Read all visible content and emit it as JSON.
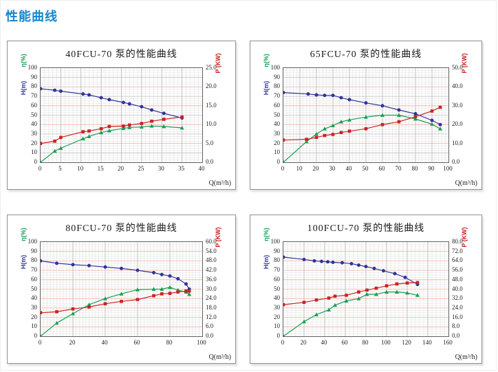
{
  "page": {
    "title": "性能曲线",
    "title_color": "#1287d0"
  },
  "chart_data": [
    {
      "type": "line",
      "title": "40FCU-70 泵的性能曲线",
      "xlabel": "Q(m³/h)",
      "x_range": [
        0,
        40
      ],
      "x_step": 5,
      "x_minor": 1,
      "left_axis": {
        "eta_label": "η(%)",
        "h_label": "H(m)",
        "range": [
          0,
          100
        ],
        "step": 10
      },
      "right_axis": {
        "label": "P (KW)",
        "range": [
          0,
          25
        ],
        "step": 5
      },
      "grid": true,
      "legend": "none",
      "series": [
        {
          "name": "H(m)",
          "axis": "left",
          "marker": "circle",
          "color": "#31319b",
          "points": [
            [
              0,
              78
            ],
            [
              3.5,
              76.5
            ],
            [
              5,
              75.5
            ],
            [
              10.5,
              72.5
            ],
            [
              12,
              71.5
            ],
            [
              15,
              68.5
            ],
            [
              17,
              66.5
            ],
            [
              20.5,
              63.5
            ],
            [
              22,
              62
            ],
            [
              25,
              59
            ],
            [
              27.5,
              55.5
            ],
            [
              30.5,
              52
            ],
            [
              35,
              47
            ]
          ]
        },
        {
          "name": "η(%)",
          "axis": "left",
          "marker": "triangle",
          "color": "#1a9e54",
          "points": [
            [
              0,
              0
            ],
            [
              3.5,
              12
            ],
            [
              5,
              15
            ],
            [
              10.5,
              25
            ],
            [
              12,
              27.5
            ],
            [
              15,
              31.5
            ],
            [
              17,
              33.5
            ],
            [
              20.5,
              36
            ],
            [
              22,
              37
            ],
            [
              25,
              37.5
            ],
            [
              27.5,
              38.5
            ],
            [
              30.5,
              38
            ],
            [
              35,
              36.5
            ]
          ]
        },
        {
          "name": "P(KW)",
          "axis": "right",
          "marker": "square",
          "color": "#cc2222",
          "points": [
            [
              0,
              5.0
            ],
            [
              3.5,
              5.6
            ],
            [
              5,
              6.6
            ],
            [
              10.5,
              8.1
            ],
            [
              12,
              8.3
            ],
            [
              15,
              8.9
            ],
            [
              17,
              9.5
            ],
            [
              20.5,
              9.6
            ],
            [
              22,
              9.9
            ],
            [
              25,
              10.3
            ],
            [
              27.5,
              10.9
            ],
            [
              30.5,
              11.4
            ],
            [
              35,
              12.0
            ]
          ]
        }
      ]
    },
    {
      "type": "line",
      "title": "65FCU-70 泵的性能曲线",
      "xlabel": "Q(m³/h)",
      "x_range": [
        0,
        100
      ],
      "x_step": 10,
      "x_minor": 2,
      "left_axis": {
        "eta_label": "η(%)",
        "h_label": "H(m)",
        "range": [
          0,
          100
        ],
        "step": 10
      },
      "right_axis": {
        "label": "P (KW)",
        "range": [
          0,
          50
        ],
        "step": 10
      },
      "grid": true,
      "legend": "none",
      "series": [
        {
          "name": "H(m)",
          "axis": "left",
          "marker": "circle",
          "color": "#31319b",
          "points": [
            [
              0,
              74
            ],
            [
              15,
              72.5
            ],
            [
              20,
              71.5
            ],
            [
              25,
              71
            ],
            [
              30,
              71
            ],
            [
              35,
              68.5
            ],
            [
              40,
              66.5
            ],
            [
              50,
              63
            ],
            [
              60,
              60
            ],
            [
              70,
              55.5
            ],
            [
              80,
              51.5
            ],
            [
              90,
              44.5
            ],
            [
              95,
              40
            ]
          ]
        },
        {
          "name": "η(%)",
          "axis": "left",
          "marker": "triangle",
          "color": "#1a9e54",
          "points": [
            [
              0,
              0
            ],
            [
              14,
              22
            ],
            [
              20,
              30
            ],
            [
              25,
              35.5
            ],
            [
              30,
              39
            ],
            [
              35,
              43
            ],
            [
              40,
              45
            ],
            [
              50,
              48
            ],
            [
              60,
              50
            ],
            [
              70,
              50
            ],
            [
              80,
              46
            ],
            [
              90,
              40.5
            ],
            [
              95,
              35.5
            ]
          ]
        },
        {
          "name": "P(KW)",
          "axis": "right",
          "marker": "square",
          "color": "#cc2222",
          "points": [
            [
              0,
              11.8
            ],
            [
              14,
              12.2
            ],
            [
              20,
              13.2
            ],
            [
              25,
              14.2
            ],
            [
              30,
              14.8
            ],
            [
              35,
              15.8
            ],
            [
              40,
              16.5
            ],
            [
              50,
              17.8
            ],
            [
              60,
              20
            ],
            [
              70,
              21.5
            ],
            [
              80,
              24.2
            ],
            [
              90,
              27.2
            ],
            [
              95,
              29.2
            ]
          ]
        }
      ]
    },
    {
      "type": "line",
      "title": "80FCU-70 泵的性能曲线",
      "xlabel": "Q(m³/h)",
      "x_range": [
        0,
        100
      ],
      "x_step": 20,
      "x_minor": 2,
      "left_axis": {
        "eta_label": "η(%)",
        "h_label": "H(m)",
        "range": [
          0,
          100
        ],
        "step": 10
      },
      "right_axis": {
        "label": "P (KW)",
        "range": [
          0,
          60
        ],
        "step": 6
      },
      "grid": true,
      "legend": "none",
      "series": [
        {
          "name": "H(m)",
          "axis": "left",
          "marker": "circle",
          "color": "#31319b",
          "points": [
            [
              0,
              80
            ],
            [
              10,
              77.5
            ],
            [
              20,
              76
            ],
            [
              30,
              75
            ],
            [
              40,
              73.5
            ],
            [
              50,
              72
            ],
            [
              60,
              70
            ],
            [
              70,
              67.5
            ],
            [
              75,
              65.5
            ],
            [
              80,
              64
            ],
            [
              85,
              61
            ],
            [
              90,
              55.5
            ],
            [
              92,
              50
            ]
          ]
        },
        {
          "name": "η(%)",
          "axis": "left",
          "marker": "triangle",
          "color": "#1a9e54",
          "points": [
            [
              0,
              0
            ],
            [
              10,
              14
            ],
            [
              20,
              24
            ],
            [
              30,
              33.5
            ],
            [
              40,
              40
            ],
            [
              50,
              45
            ],
            [
              60,
              49.5
            ],
            [
              70,
              50
            ],
            [
              75,
              50
            ],
            [
              80,
              52
            ],
            [
              85,
              49
            ],
            [
              90,
              47
            ],
            [
              92,
              44.5
            ]
          ]
        },
        {
          "name": "P(KW)",
          "axis": "right",
          "marker": "square",
          "color": "#cc2222",
          "points": [
            [
              0,
              15
            ],
            [
              10,
              15.6
            ],
            [
              20,
              17.4
            ],
            [
              30,
              18.6
            ],
            [
              40,
              20.7
            ],
            [
              50,
              22.2
            ],
            [
              60,
              23.4
            ],
            [
              70,
              25.8
            ],
            [
              75,
              27
            ],
            [
              80,
              27.3
            ],
            [
              85,
              28.2
            ],
            [
              90,
              28.8
            ],
            [
              92,
              28.8
            ]
          ]
        }
      ]
    },
    {
      "type": "line",
      "title": "100FCU-70 泵的性能曲线",
      "xlabel": "Q(m³/h)",
      "x_range": [
        0,
        160
      ],
      "x_step": 20,
      "x_minor": 4,
      "left_axis": {
        "eta_label": "η(%)",
        "h_label": "H(m)",
        "range": [
          0,
          100
        ],
        "step": 10
      },
      "right_axis": {
        "label": "P (KW)",
        "range": [
          0,
          80
        ],
        "step": 8
      },
      "grid": true,
      "legend": "none",
      "series": [
        {
          "name": "H(m)",
          "axis": "left",
          "marker": "circle",
          "color": "#31319b",
          "points": [
            [
              0,
              84
            ],
            [
              20,
              81.5
            ],
            [
              30,
              80
            ],
            [
              37,
              79.5
            ],
            [
              43,
              79
            ],
            [
              48,
              78.5
            ],
            [
              57,
              78
            ],
            [
              66,
              77
            ],
            [
              73,
              75.5
            ],
            [
              80,
              74
            ],
            [
              88,
              72
            ],
            [
              97,
              69.5
            ],
            [
              108,
              66.5
            ],
            [
              118,
              62.5
            ],
            [
              130,
              55
            ]
          ]
        },
        {
          "name": "η(%)",
          "axis": "left",
          "marker": "triangle",
          "color": "#1a9e54",
          "points": [
            [
              0,
              0
            ],
            [
              20,
              15.5
            ],
            [
              32,
              23
            ],
            [
              44,
              28
            ],
            [
              50,
              33
            ],
            [
              61,
              37.5
            ],
            [
              73,
              40
            ],
            [
              81,
              44.5
            ],
            [
              90,
              44.5
            ],
            [
              100,
              47
            ],
            [
              110,
              47
            ],
            [
              120,
              46
            ],
            [
              130,
              43.5
            ]
          ]
        },
        {
          "name": "P(KW)",
          "axis": "right",
          "marker": "square",
          "color": "#cc2222",
          "points": [
            [
              0,
              26.8
            ],
            [
              20,
              28.8
            ],
            [
              32,
              30.8
            ],
            [
              44,
              32.4
            ],
            [
              50,
              34
            ],
            [
              61,
              34.8
            ],
            [
              73,
              37.6
            ],
            [
              81,
              39.2
            ],
            [
              90,
              40.8
            ],
            [
              100,
              42.8
            ],
            [
              110,
              44.4
            ],
            [
              120,
              45.2
            ],
            [
              130,
              45.6
            ]
          ]
        }
      ]
    }
  ]
}
